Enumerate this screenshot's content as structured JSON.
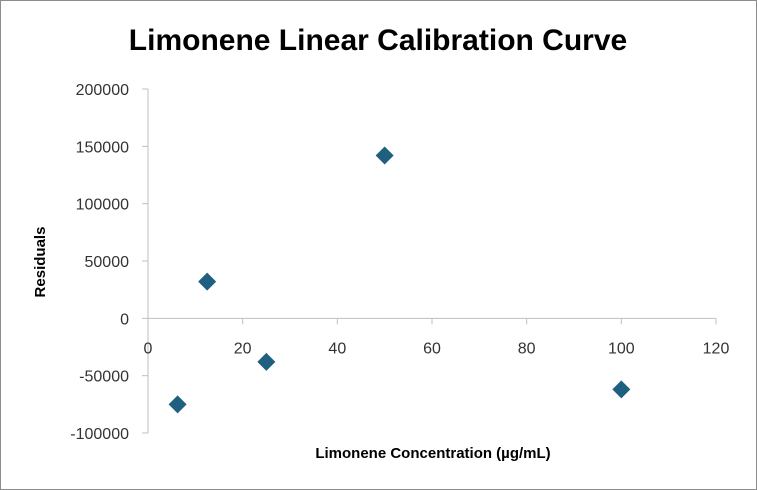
{
  "chart_data": {
    "type": "scatter",
    "title": "Limonene Linear Calibration Curve",
    "xlabel": "Limonene Concentration (µg/mL)",
    "ylabel": "Residuals",
    "xlim": [
      0,
      120
    ],
    "ylim": [
      -100000,
      200000
    ],
    "x_ticks": [
      0,
      20,
      40,
      60,
      80,
      100,
      120
    ],
    "y_ticks": [
      200000,
      150000,
      100000,
      50000,
      0,
      -50000,
      -100000
    ],
    "grid": false,
    "legend": "none",
    "marker": "diamond",
    "marker_color": "#1f5f80",
    "series": [
      {
        "x": [
          6.25,
          12.5,
          25,
          50,
          100
        ],
        "y": [
          -75000,
          32000,
          -38000,
          142000,
          -62000
        ]
      }
    ]
  }
}
